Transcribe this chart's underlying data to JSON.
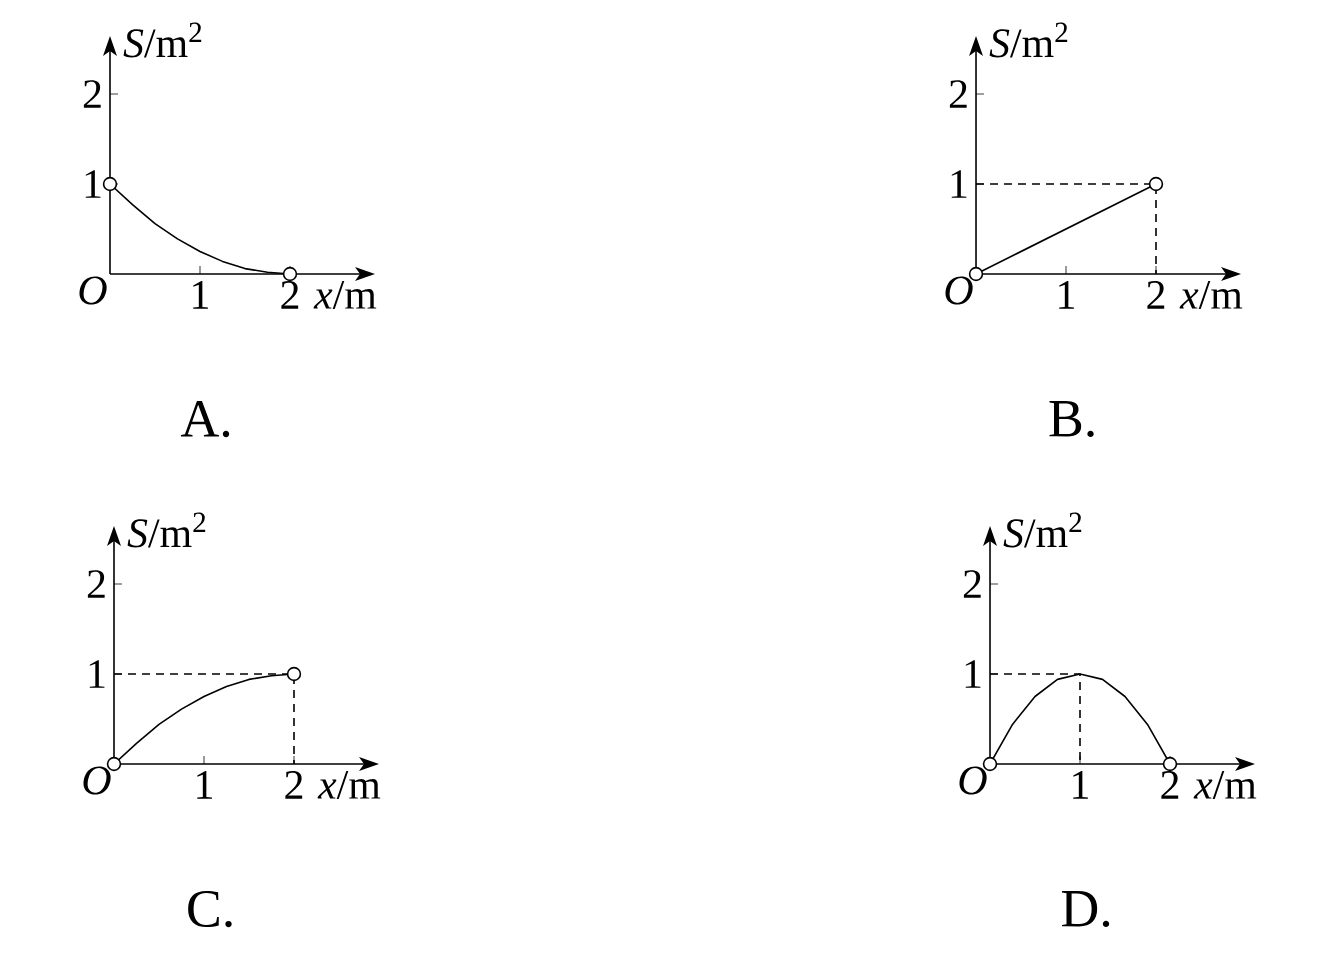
{
  "chart_data": [
    {
      "type": "line",
      "title": "A.",
      "xlabel": "*x*/m",
      "ylabel": "*S*/m$^{2}$",
      "annotations": [
        "*O*"
      ],
      "xlim": [
        0,
        2.9
      ],
      "ylim": [
        0,
        2.6
      ],
      "xticks": [
        1,
        2
      ],
      "yticks": [
        1,
        2
      ],
      "series": [
        {
          "type": "line",
          "color": "#000000",
          "line_style": "solid",
          "x": [
            0,
            0.25,
            0.5,
            0.75,
            1,
            1.25,
            1.5,
            1.75,
            2
          ],
          "values": [
            1,
            0.77,
            0.56,
            0.39,
            0.25,
            0.14,
            0.06,
            0.02,
            0
          ]
        },
        {
          "type": "scatter",
          "color": "#000000",
          "marker": "circle",
          "x": [
            0,
            2
          ],
          "values": [
            1,
            0
          ]
        }
      ]
    },
    {
      "type": "line",
      "title": "B.",
      "xlabel": "*x*/m",
      "ylabel": "*S*/m$^{2}$",
      "annotations": [
        "*O*"
      ],
      "xlim": [
        0,
        2.9
      ],
      "ylim": [
        0,
        2.6
      ],
      "xticks": [
        1,
        2
      ],
      "yticks": [
        1,
        2
      ],
      "series": [
        {
          "type": "line",
          "color": "#000000",
          "line_style": "dashed",
          "x": [
            0,
            2,
            2
          ],
          "values": [
            1,
            1,
            0
          ]
        },
        {
          "type": "line",
          "color": "#000000",
          "line_style": "solid",
          "x": [
            0,
            2
          ],
          "values": [
            0,
            1
          ]
        },
        {
          "type": "scatter",
          "color": "#000000",
          "marker": "circle",
          "x": [
            0,
            2
          ],
          "values": [
            0,
            1
          ]
        }
      ]
    },
    {
      "type": "line",
      "title": "C.",
      "xlabel": "*x*/m",
      "ylabel": "*S*/m$^{2}$",
      "annotations": [
        "*O*"
      ],
      "xlim": [
        0,
        2.9
      ],
      "ylim": [
        0,
        2.6
      ],
      "xticks": [
        1,
        2
      ],
      "yticks": [
        1,
        2
      ],
      "series": [
        {
          "type": "line",
          "color": "#000000",
          "line_style": "dashed",
          "x": [
            0,
            2,
            2
          ],
          "values": [
            1,
            1,
            0
          ]
        },
        {
          "type": "line",
          "color": "#000000",
          "line_style": "solid",
          "x": [
            0,
            0.25,
            0.5,
            0.75,
            1,
            1.25,
            1.5,
            1.75,
            2
          ],
          "values": [
            0,
            0.23,
            0.44,
            0.61,
            0.75,
            0.86,
            0.94,
            0.98,
            1
          ]
        },
        {
          "type": "scatter",
          "color": "#000000",
          "marker": "circle",
          "x": [
            0,
            2
          ],
          "values": [
            0,
            1
          ]
        }
      ]
    },
    {
      "type": "line",
      "title": "D.",
      "xlabel": "*x*/m",
      "ylabel": "*S*/m$^{2}$",
      "annotations": [
        "*O*"
      ],
      "xlim": [
        0,
        2.9
      ],
      "ylim": [
        0,
        2.6
      ],
      "xticks": [
        1,
        2
      ],
      "yticks": [
        1,
        2
      ],
      "series": [
        {
          "type": "line",
          "color": "#000000",
          "line_style": "dashed",
          "x": [
            0,
            1,
            1
          ],
          "values": [
            1,
            1,
            0
          ]
        },
        {
          "type": "line",
          "color": "#000000",
          "line_style": "solid",
          "x": [
            0,
            0.25,
            0.5,
            0.75,
            1,
            1.25,
            1.5,
            1.75,
            2
          ],
          "values": [
            0,
            0.44,
            0.75,
            0.94,
            1,
            0.94,
            0.75,
            0.44,
            0
          ]
        },
        {
          "type": "scatter",
          "color": "#000000",
          "marker": "circle",
          "x": [
            0,
            2
          ],
          "values": [
            0,
            0
          ]
        }
      ]
    }
  ]
}
